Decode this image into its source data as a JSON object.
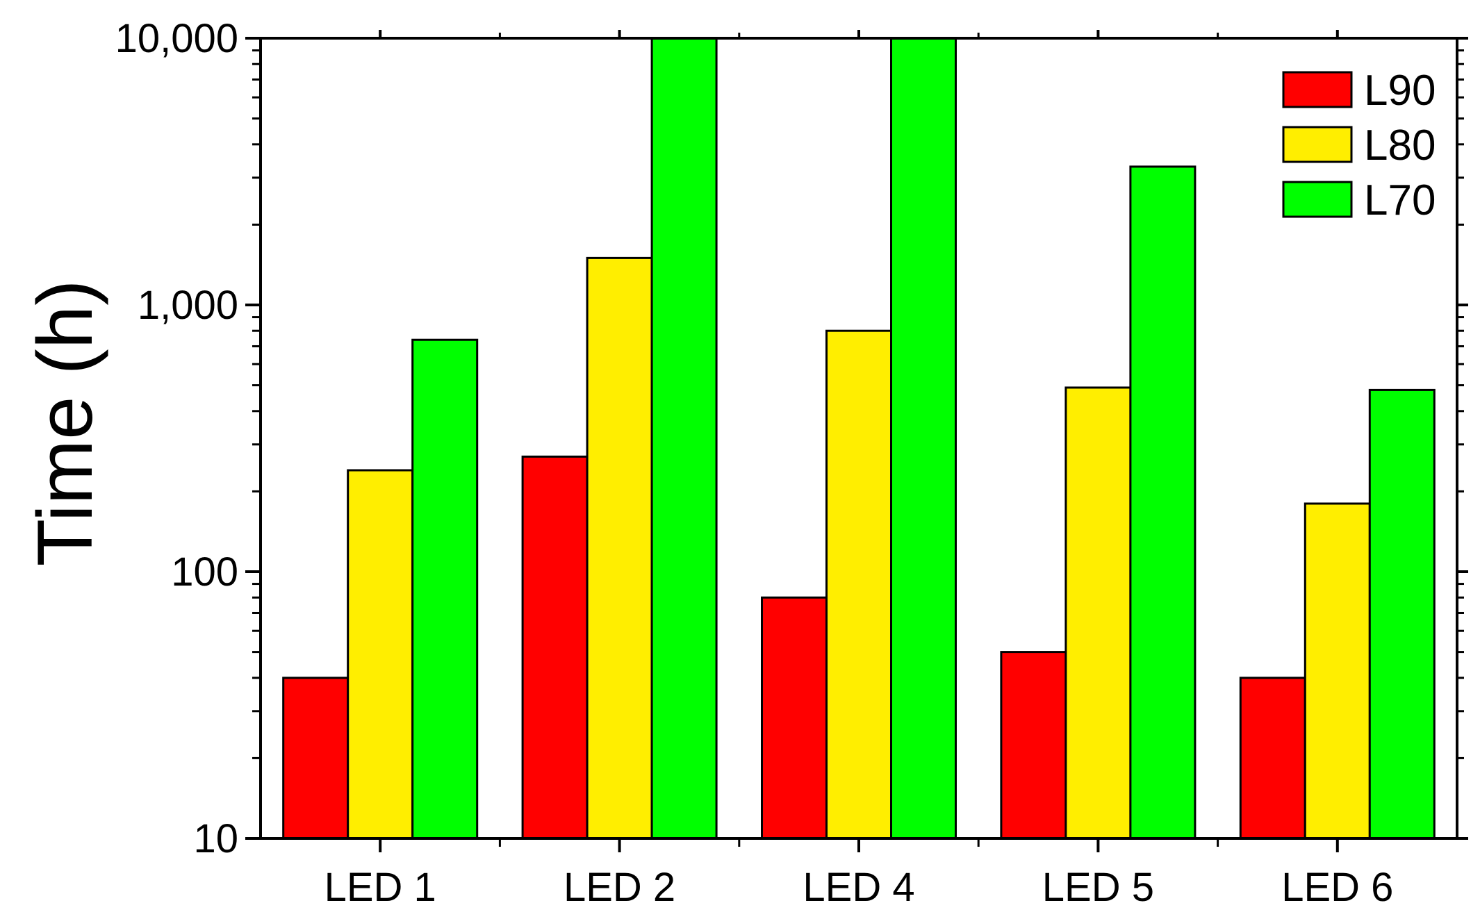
{
  "chart_data": {
    "type": "bar",
    "title": "",
    "xlabel": "",
    "ylabel": "Time (h)",
    "yscale": "log",
    "ylim": [
      10,
      10000
    ],
    "yticks": [
      10,
      100,
      1000,
      10000
    ],
    "ytick_labels": [
      "10",
      "100",
      "1,000",
      "10,000"
    ],
    "categories": [
      "LED 1",
      "LED 2",
      "LED 4",
      "LED 5",
      "LED 6"
    ],
    "series": [
      {
        "name": "L90",
        "color": "#ff0000",
        "values": [
          40,
          270,
          80,
          50,
          40
        ]
      },
      {
        "name": "L80",
        "color": "#ffee00",
        "values": [
          240,
          1500,
          800,
          490,
          180
        ]
      },
      {
        "name": "L70",
        "color": "#00ff00",
        "values": [
          740,
          10000,
          10000,
          3300,
          480
        ]
      }
    ],
    "legend_position": "top-right",
    "grid": false
  }
}
